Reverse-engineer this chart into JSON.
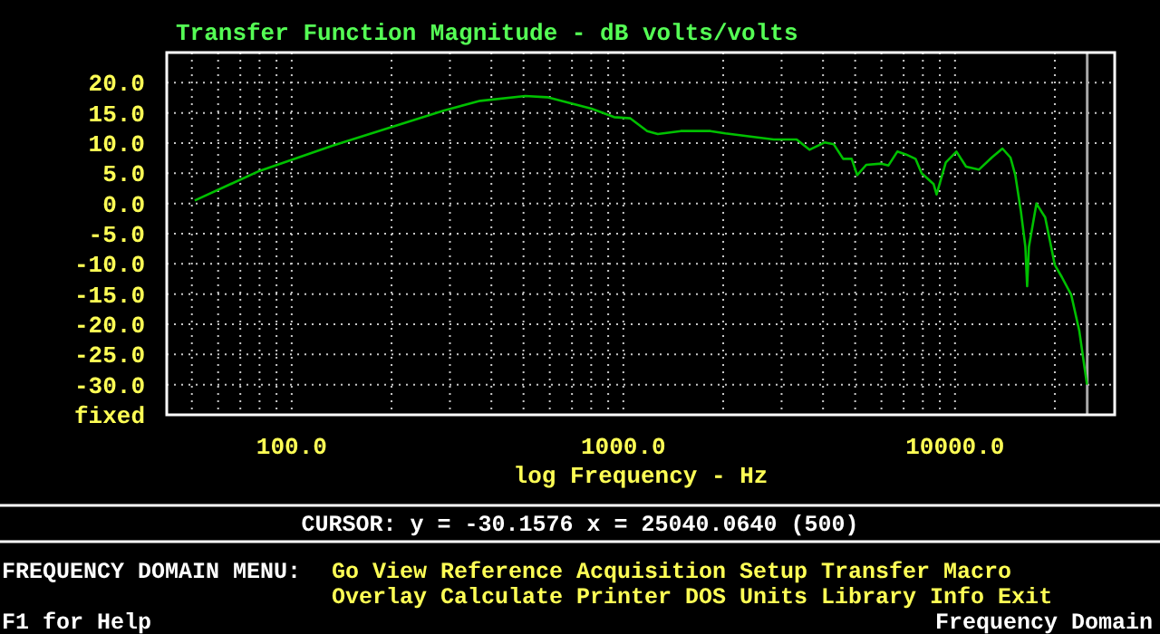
{
  "chart_data": {
    "type": "line",
    "title": "Transfer Function Magnitude - dB volts/volts",
    "xlabel": "log Frequency - Hz",
    "log": "x",
    "xlim": [
      42,
      30300
    ],
    "ylim": [
      -35,
      25
    ],
    "xticks": [
      {
        "value": 50,
        "label": null
      },
      {
        "value": 60,
        "label": null
      },
      {
        "value": 70,
        "label": null
      },
      {
        "value": 80,
        "label": null
      },
      {
        "value": 90,
        "label": null
      },
      {
        "value": 100,
        "label": "100.0"
      },
      {
        "value": 200,
        "label": null
      },
      {
        "value": 300,
        "label": null
      },
      {
        "value": 400,
        "label": null
      },
      {
        "value": 500,
        "label": null
      },
      {
        "value": 600,
        "label": null
      },
      {
        "value": 700,
        "label": null
      },
      {
        "value": 800,
        "label": null
      },
      {
        "value": 900,
        "label": null
      },
      {
        "value": 1000,
        "label": "1000.0"
      },
      {
        "value": 2000,
        "label": null
      },
      {
        "value": 3000,
        "label": null
      },
      {
        "value": 4000,
        "label": null
      },
      {
        "value": 5000,
        "label": null
      },
      {
        "value": 6000,
        "label": null
      },
      {
        "value": 7000,
        "label": null
      },
      {
        "value": 8000,
        "label": null
      },
      {
        "value": 9000,
        "label": null
      },
      {
        "value": 10000,
        "label": "10000.0"
      },
      {
        "value": 20000,
        "label": null
      }
    ],
    "yticks": [
      {
        "value": -35,
        "label": "fixed"
      },
      {
        "value": -30,
        "label": "-30.0"
      },
      {
        "value": -25,
        "label": "-25.0"
      },
      {
        "value": -20,
        "label": "-20.0"
      },
      {
        "value": -15,
        "label": "-15.0"
      },
      {
        "value": -10,
        "label": "-10.0"
      },
      {
        "value": -5,
        "label": "-5.0"
      },
      {
        "value": 0,
        "label": "0.0"
      },
      {
        "value": 5,
        "label": "5.0"
      },
      {
        "value": 10,
        "label": "10.0"
      },
      {
        "value": 15,
        "label": "15.0"
      },
      {
        "value": 20,
        "label": "20.0"
      }
    ],
    "grid": true,
    "marker": "none",
    "line_style": "solid",
    "ref_lines": [
      {
        "axis": "x",
        "value": 25040,
        "color": "#a8a8a8"
      }
    ],
    "series": [
      {
        "color": "#00c000",
        "x": [
          51,
          80,
          133,
          288,
          370,
          506,
          589,
          802,
          938,
          1050,
          1180,
          1270,
          1490,
          1830,
          2030,
          2840,
          3330,
          3640,
          4040,
          4310,
          4600,
          4880,
          5070,
          5400,
          6000,
          6300,
          6700,
          7130,
          7600,
          7930,
          8620,
          8800,
          9380,
          10100,
          10800,
          11800,
          12900,
          13900,
          14700,
          15200,
          15800,
          16300,
          16500,
          16700,
          17600,
          18300,
          18700,
          20000,
          21000,
          22400,
          23700,
          25000
        ],
        "values": [
          0.5,
          5.4,
          9.6,
          15.4,
          17,
          17.8,
          17.6,
          15.7,
          14.3,
          14.1,
          12,
          11.5,
          12,
          12,
          11.6,
          10.6,
          10.6,
          8.9,
          10.1,
          9.8,
          7.4,
          7.4,
          4.7,
          6.4,
          6.6,
          6.3,
          8.6,
          8.1,
          7.4,
          5,
          3.2,
          1.5,
          6.8,
          8.6,
          6.1,
          5.6,
          7.6,
          9.1,
          7.6,
          4.7,
          -1.3,
          -7.2,
          -13.7,
          -7.2,
          0,
          -1.5,
          -2.3,
          -10.2,
          -12.2,
          -15.1,
          -21.1,
          -30
        ]
      }
    ],
    "annotations": [
      "CURSOR: y = -30.1576 x = 25040.0640 (500)",
      "FREQUENCY DOMAIN MENU:",
      "Go View Reference Acquisition Setup Transfer Macro",
      "Overlay Calculate Printer DOS Units Library Info Exit",
      "F1 for Help",
      "Frequency Domain"
    ]
  }
}
